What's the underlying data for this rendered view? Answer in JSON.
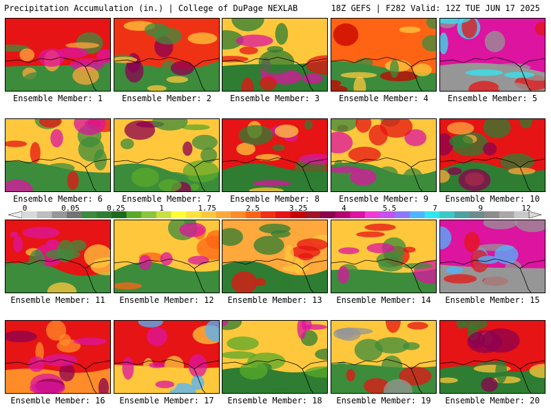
{
  "header": {
    "title_left": "Precipitation Accumulation (in.) | College of DuPage NEXLAB",
    "title_right": "18Z GEFS | F282 Valid: 12Z TUE JUN 17 2025"
  },
  "colorbar": {
    "tick_labels": [
      "0",
      "0.05",
      "0.25",
      "1",
      "1.75",
      "2.5",
      "3.25",
      "4",
      "5.5",
      "7",
      "9",
      "12"
    ],
    "colors": [
      "#d9d9d9",
      "#bdbdbd",
      "#969696",
      "#737373",
      "#3c8c3c",
      "#2e7d32",
      "#1b6b1b",
      "#5aaa2a",
      "#8cc63c",
      "#c8e040",
      "#ffff33",
      "#ffe23c",
      "#ffc83c",
      "#ffa83c",
      "#ff8c28",
      "#ff6414",
      "#f03214",
      "#e61414",
      "#c80000",
      "#a01428",
      "#8c0050",
      "#b4006e",
      "#dc14a0",
      "#f03cd2",
      "#c850f0",
      "#8c78ff",
      "#50b4ff",
      "#32e6f0",
      "#3cc8c8",
      "#50a0a0",
      "#6e8c8c",
      "#8c8c8c",
      "#a8a8a8",
      "#c8c8c8"
    ]
  },
  "members": [
    {
      "label": "Ensemble Member: 1"
    },
    {
      "label": "Ensemble Member: 2"
    },
    {
      "label": "Ensemble Member: 3"
    },
    {
      "label": "Ensemble Member: 4"
    },
    {
      "label": "Ensemble Member: 5"
    },
    {
      "label": "Ensemble Member: 6"
    },
    {
      "label": "Ensemble Member: 7"
    },
    {
      "label": "Ensemble Member: 8"
    },
    {
      "label": "Ensemble Member: 9"
    },
    {
      "label": "Ensemble Member: 10"
    },
    {
      "label": "Ensemble Member: 11"
    },
    {
      "label": "Ensemble Member: 12"
    },
    {
      "label": "Ensemble Member: 13"
    },
    {
      "label": "Ensemble Member: 14"
    },
    {
      "label": "Ensemble Member: 15"
    },
    {
      "label": "Ensemble Member: 16"
    },
    {
      "label": "Ensemble Member: 17"
    },
    {
      "label": "Ensemble Member: 18"
    },
    {
      "label": "Ensemble Member: 19"
    },
    {
      "label": "Ensemble Member: 20"
    }
  ]
}
